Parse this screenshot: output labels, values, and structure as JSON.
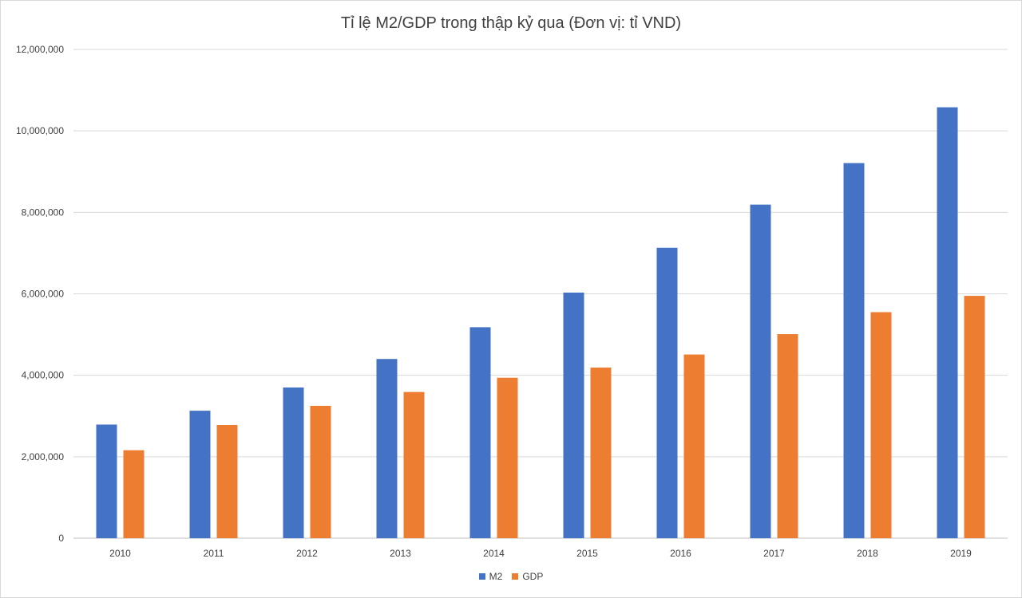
{
  "chart_data": {
    "type": "bar",
    "title": "Tỉ lệ M2/GDP trong thập kỷ qua (Đơn vị: tỉ VND)",
    "categories": [
      "2010",
      "2011",
      "2012",
      "2013",
      "2014",
      "2015",
      "2016",
      "2017",
      "2018",
      "2019"
    ],
    "series": [
      {
        "name": "M2",
        "color": "#4472C4",
        "values": [
          2790000,
          3130000,
          3700000,
          4400000,
          5180000,
          6030000,
          7130000,
          8190000,
          9210000,
          10580000
        ]
      },
      {
        "name": "GDP",
        "color": "#ED7D31",
        "values": [
          2160000,
          2780000,
          3250000,
          3590000,
          3940000,
          4190000,
          4510000,
          5010000,
          5550000,
          5950000
        ]
      }
    ],
    "ylim": [
      0,
      12000000
    ],
    "yticks": [
      0,
      2000000,
      4000000,
      6000000,
      8000000,
      10000000,
      12000000
    ],
    "ytick_labels": [
      "0",
      "2,000,000",
      "4,000,000",
      "6,000,000",
      "8,000,000",
      "10,000,000",
      "12,000,000"
    ],
    "grid": true,
    "legend_position": "bottom",
    "xlabel": "",
    "ylabel": ""
  }
}
